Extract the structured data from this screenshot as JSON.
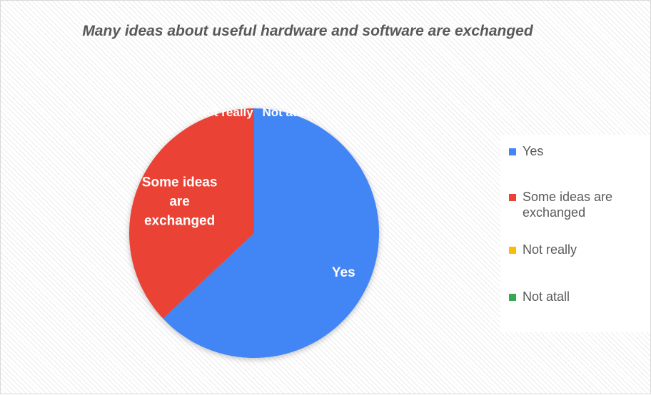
{
  "chart_data": {
    "type": "pie",
    "title": "Many ideas about useful hardware and software are exchanged",
    "slices": [
      {
        "label": "Yes",
        "value": 63,
        "color": "#4285F4"
      },
      {
        "label": "Some ideas are exchanged",
        "value": 37,
        "color": "#EA4335"
      },
      {
        "label": "Not really",
        "value": 0,
        "color": "#FBBC04"
      },
      {
        "label": "Not atall",
        "value": 0,
        "color": "#34A853"
      }
    ],
    "data_labels": [
      "Yes",
      "Some ideas are exchanged",
      "Not really",
      "Not atall"
    ],
    "legend_position": "right",
    "background_pattern": "diagonal-stripes"
  }
}
